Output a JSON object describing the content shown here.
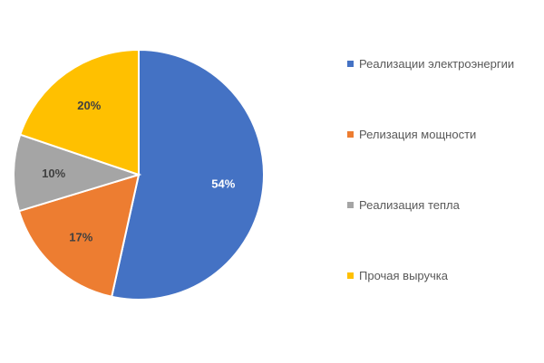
{
  "chart_data": {
    "type": "pie",
    "title": "",
    "categories": [
      "Реализации электроэнергии",
      "Релизация мощности",
      "Реализация тепла",
      "Прочая выручка"
    ],
    "values": [
      54,
      17,
      10,
      20
    ],
    "labels": [
      "54%",
      "17%",
      "10%",
      "20%"
    ],
    "unit": "%",
    "colors": [
      "#4472C4",
      "#ED7D31",
      "#A5A5A5",
      "#FFC000"
    ],
    "label_colors": [
      "#ffffff",
      "#404040",
      "#404040",
      "#404040"
    ],
    "start_angle": "12 o'clock",
    "direction": "clockwise",
    "legend_position": "right"
  }
}
